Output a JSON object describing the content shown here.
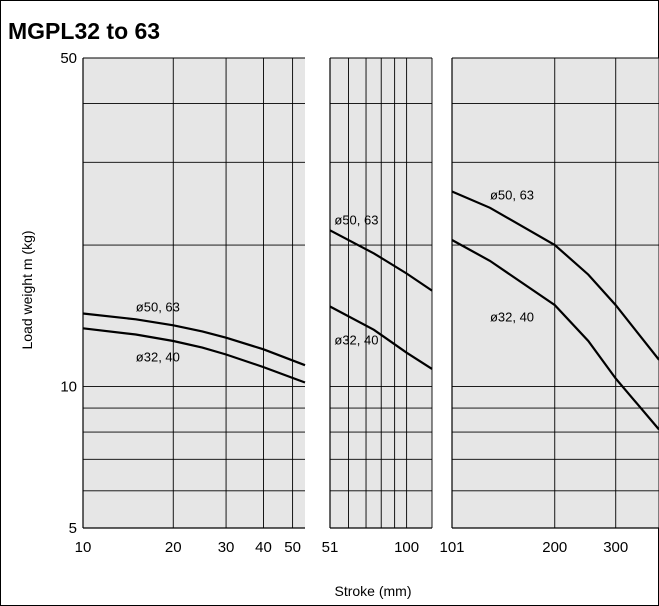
{
  "header": {
    "title": "MGPL32 to 63"
  },
  "chart_data": {
    "type": "line",
    "title": "MGPL32 to 63",
    "xlabel": "Stroke (mm)",
    "ylabel": "Load weight  m (kg)",
    "yscale": "log",
    "xscale": "log",
    "ylim": [
      5,
      50
    ],
    "y_tick_labels": [
      "50",
      "10",
      "5"
    ],
    "panels": [
      {
        "xlim": [
          10,
          55
        ],
        "x_tick_labels": [
          "10",
          "20",
          "30",
          "40",
          "50"
        ],
        "series": [
          {
            "name": "ø50, 63",
            "x": [
              10,
              15,
              20,
              25,
              30,
              40,
              55
            ],
            "y": [
              14.3,
              13.9,
              13.5,
              13.1,
              12.7,
              12.0,
              11.1
            ]
          },
          {
            "name": "ø32, 40",
            "x": [
              10,
              15,
              20,
              25,
              30,
              40,
              55
            ],
            "y": [
              13.3,
              12.9,
              12.5,
              12.1,
              11.7,
              11.0,
              10.2
            ]
          }
        ]
      },
      {
        "xlim": [
          51,
          125
        ],
        "x_tick_labels": [
          "51",
          "100"
        ],
        "series": [
          {
            "name": "ø50, 63",
            "x": [
              51,
              75,
              100,
              125
            ],
            "y": [
              21.5,
              19.2,
              17.4,
              16.0
            ]
          },
          {
            "name": "ø32, 40",
            "x": [
              51,
              75,
              100,
              125
            ],
            "y": [
              14.8,
              13.2,
              11.8,
              10.9
            ]
          }
        ]
      },
      {
        "xlim": [
          101,
          400
        ],
        "x_tick_labels": [
          "101",
          "200",
          "300"
        ],
        "series": [
          {
            "name": "ø50, 63",
            "x": [
              101,
              130,
              200,
              250,
              300,
              400
            ],
            "y": [
              26.0,
              24.0,
              20.0,
              17.3,
              14.9,
              11.4
            ]
          },
          {
            "name": "ø32, 40",
            "x": [
              101,
              130,
              200,
              250,
              300,
              400
            ],
            "y": [
              20.5,
              18.5,
              14.9,
              12.5,
              10.4,
              8.1
            ]
          }
        ]
      }
    ],
    "grid": true,
    "colors": {
      "background": "#e6e6e6",
      "grid": "#000000",
      "line": "#000000"
    }
  }
}
